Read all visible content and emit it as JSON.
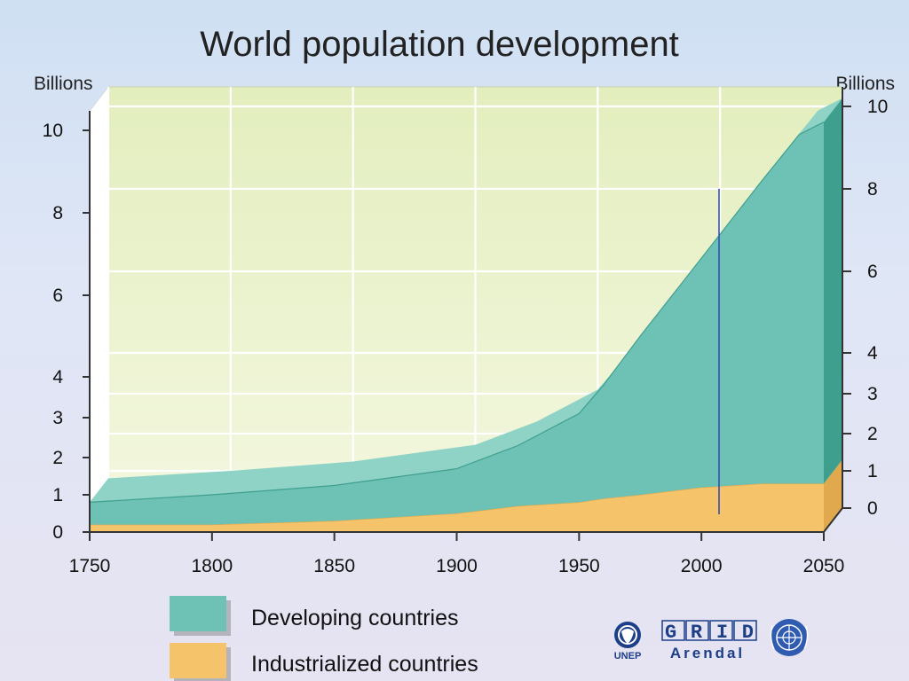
{
  "chart_data": {
    "type": "area",
    "stacked": true,
    "title": "World population development",
    "y_unit_left": "Billions",
    "y_unit_right": "Billions",
    "xlim": [
      1750,
      2050
    ],
    "ylim": [
      0,
      10
    ],
    "x_ticks": [
      "1750",
      "1800",
      "1850",
      "1900",
      "1950",
      "2000",
      "2050"
    ],
    "y_ticks_left": [
      {
        "v": 0,
        "label": "0"
      },
      {
        "v": 1,
        "label": "1"
      },
      {
        "v": 2,
        "label": "2"
      },
      {
        "v": 3,
        "label": "3"
      },
      {
        "v": 4,
        "label": "4"
      },
      {
        "v": 6,
        "label": "6"
      },
      {
        "v": 8,
        "label": "8"
      },
      {
        "v": 10,
        "label": "10"
      }
    ],
    "y_ticks_right": [
      {
        "v": 0,
        "label": "0"
      },
      {
        "v": 1,
        "label": "1"
      },
      {
        "v": 2,
        "label": "2"
      },
      {
        "v": 3,
        "label": "3"
      },
      {
        "v": 4,
        "label": "4"
      },
      {
        "v": 6,
        "label": "6"
      },
      {
        "v": 8,
        "label": "8"
      },
      {
        "v": 10,
        "label": "10"
      }
    ],
    "grid": true,
    "legend_position": "bottom-left",
    "x": [
      1750,
      1800,
      1850,
      1900,
      1925,
      1950,
      1960,
      1975,
      2000,
      2025,
      2040,
      2050
    ],
    "series": [
      {
        "name": "Industrialized countries",
        "color": "#f5c36a",
        "values": [
          0.2,
          0.2,
          0.3,
          0.5,
          0.7,
          0.8,
          0.9,
          1.0,
          1.2,
          1.3,
          1.3,
          1.3
        ]
      },
      {
        "name": "Developing countries",
        "color": "#6ec2b5",
        "values": [
          0.6,
          0.8,
          0.95,
          1.2,
          1.6,
          2.3,
          2.9,
          4.0,
          5.7,
          7.5,
          8.6,
          8.9
        ]
      }
    ]
  },
  "logos": {
    "unep": "UNEP",
    "grid": "GRID",
    "arendal": "Arendal"
  }
}
